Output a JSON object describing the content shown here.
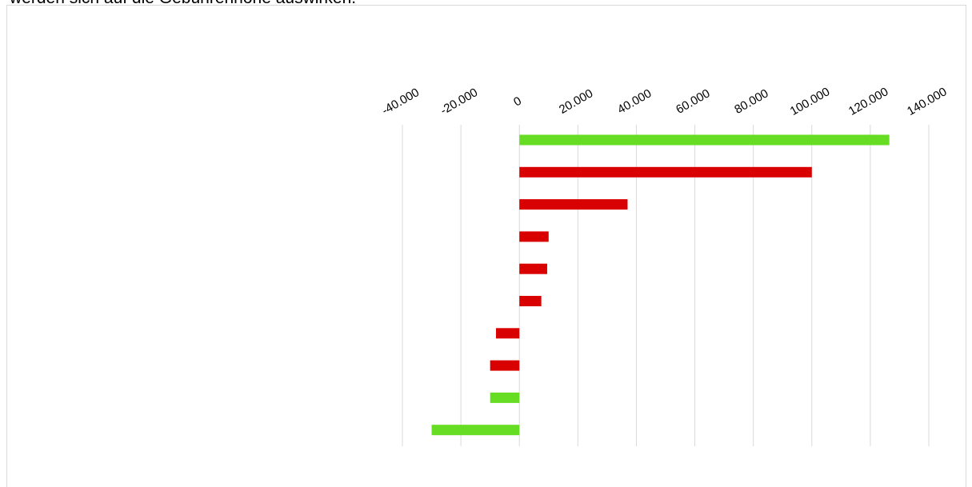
{
  "intro": {
    "text": "werden sich auf die Gebührenhöhe auswirken."
  },
  "colors": {
    "positive_green": "#66dd22",
    "negative_red": "#d90000",
    "gridline": "#d9d9d9",
    "frame": "#d9d9d9"
  },
  "chart_data": {
    "type": "bar",
    "orientation": "horizontal",
    "title": "",
    "xlabel": "",
    "ylabel": "",
    "x_axis_position": "top",
    "xlim": [
      -40000,
      140000
    ],
    "tick_values": [
      -40000,
      -20000,
      0,
      20000,
      40000,
      60000,
      80000,
      100000,
      120000,
      140000
    ],
    "tick_labels": [
      "-40.000",
      "-20.000",
      "0",
      "20.000",
      "40.000",
      "60.000",
      "80.000",
      "100.000",
      "120.000",
      "140.000"
    ],
    "grid": true,
    "legend": "none",
    "categories": [
      "",
      "",
      "",
      "",
      "",
      "",
      "",
      "",
      "",
      ""
    ],
    "values": [
      126500,
      100000,
      37000,
      10000,
      9500,
      7500,
      -8000,
      -10000,
      -10000,
      -30000
    ],
    "bar_colors": [
      "green",
      "red",
      "red",
      "red",
      "red",
      "red",
      "red",
      "red",
      "green",
      "green"
    ]
  }
}
